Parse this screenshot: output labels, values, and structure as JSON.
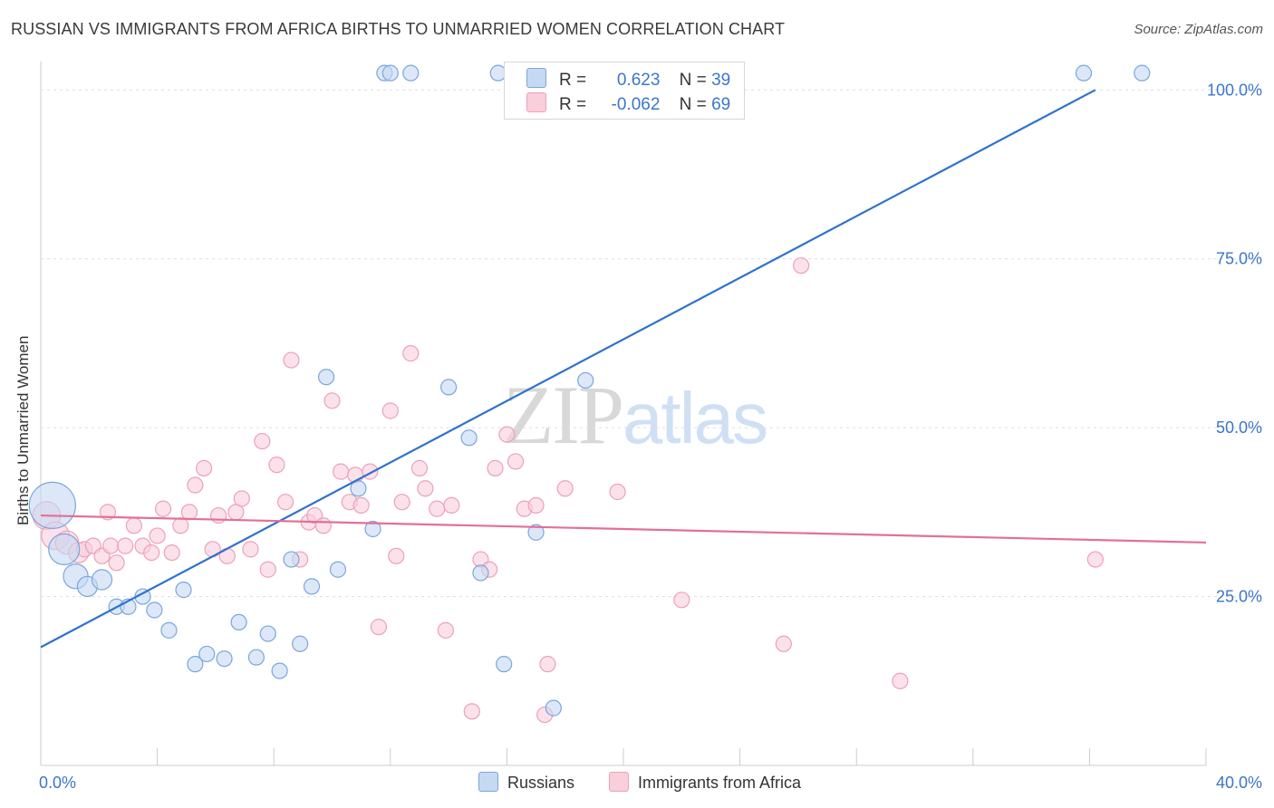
{
  "header": {
    "title": "RUSSIAN VS IMMIGRANTS FROM AFRICA BIRTHS TO UNMARRIED WOMEN CORRELATION CHART",
    "source": "Source: ZipAtlas.com"
  },
  "watermark": {
    "zip": "ZIP",
    "atlas": "atlas"
  },
  "legend": {
    "russians": {
      "r_label": "R =",
      "r_value": "0.623",
      "n_label": "N =",
      "n_value": "39"
    },
    "africa": {
      "r_label": "R =",
      "r_value": "-0.062",
      "n_label": "N =",
      "n_value": "69"
    }
  },
  "bottom_legend": {
    "russians": "Russians",
    "africa": "Immigrants from Africa"
  },
  "colors": {
    "russians_fill": "#c5d9f3",
    "russians_stroke": "#7aa6dc",
    "russians_line": "#2f72cc",
    "africa_fill": "#f9cfdc",
    "africa_stroke": "#eea0b7",
    "africa_line": "#e36f97",
    "tick_label": "#3b76c9",
    "grid": "#dddddd"
  },
  "chart_data": {
    "type": "scatter",
    "title": "RUSSIAN VS IMMIGRANTS FROM AFRICA BIRTHS TO UNMARRIED WOMEN CORRELATION CHART",
    "ylabel": "Births to Unmarried Women",
    "xlim": [
      0,
      40
    ],
    "ylim": [
      0,
      105
    ],
    "x_ticks": [
      0,
      40
    ],
    "x_tick_labels": [
      "0.0%",
      "40.0%"
    ],
    "y_ticks": [
      25,
      50,
      75,
      100
    ],
    "y_tick_labels": [
      "25.0%",
      "50.0%",
      "75.0%",
      "100.0%"
    ],
    "grid": true,
    "legend_position": "top-center",
    "series": [
      {
        "name": "Russians",
        "stats": {
          "R": 0.623,
          "N": 39
        },
        "trend": {
          "x": [
            0,
            36.2
          ],
          "y": [
            17.5,
            100
          ]
        },
        "points": [
          {
            "x": 0.4,
            "y": 38.5,
            "s": 3
          },
          {
            "x": 0.8,
            "y": 32,
            "s": 2
          },
          {
            "x": 1.2,
            "y": 28,
            "s": 1.6
          },
          {
            "x": 1.6,
            "y": 26.5,
            "s": 1.3
          },
          {
            "x": 2.1,
            "y": 27.5,
            "s": 1.3
          },
          {
            "x": 2.6,
            "y": 23.5,
            "s": 1
          },
          {
            "x": 3.0,
            "y": 23.5,
            "s": 1
          },
          {
            "x": 3.5,
            "y": 25,
            "s": 1
          },
          {
            "x": 3.9,
            "y": 23,
            "s": 1
          },
          {
            "x": 4.4,
            "y": 20,
            "s": 1
          },
          {
            "x": 4.9,
            "y": 26,
            "s": 1
          },
          {
            "x": 5.3,
            "y": 15,
            "s": 1
          },
          {
            "x": 5.7,
            "y": 16.5,
            "s": 1
          },
          {
            "x": 6.3,
            "y": 15.8,
            "s": 1
          },
          {
            "x": 6.8,
            "y": 21.2,
            "s": 1
          },
          {
            "x": 7.4,
            "y": 16,
            "s": 1
          },
          {
            "x": 7.8,
            "y": 19.5,
            "s": 1
          },
          {
            "x": 8.2,
            "y": 14,
            "s": 1
          },
          {
            "x": 8.6,
            "y": 30.5,
            "s": 1
          },
          {
            "x": 8.9,
            "y": 18,
            "s": 1
          },
          {
            "x": 9.3,
            "y": 26.5,
            "s": 1
          },
          {
            "x": 9.8,
            "y": 57.5,
            "s": 1
          },
          {
            "x": 10.2,
            "y": 29,
            "s": 1
          },
          {
            "x": 10.9,
            "y": 41,
            "s": 1
          },
          {
            "x": 11.4,
            "y": 35,
            "s": 1
          },
          {
            "x": 11.8,
            "y": 102.5,
            "s": 1
          },
          {
            "x": 12.0,
            "y": 102.5,
            "s": 1
          },
          {
            "x": 12.7,
            "y": 102.5,
            "s": 1
          },
          {
            "x": 14.0,
            "y": 56,
            "s": 1
          },
          {
            "x": 14.7,
            "y": 48.5,
            "s": 1
          },
          {
            "x": 15.1,
            "y": 28.5,
            "s": 1
          },
          {
            "x": 15.7,
            "y": 102.5,
            "s": 1
          },
          {
            "x": 15.9,
            "y": 15,
            "s": 1
          },
          {
            "x": 17.0,
            "y": 34.5,
            "s": 1
          },
          {
            "x": 17.6,
            "y": 8.5,
            "s": 1
          },
          {
            "x": 18.7,
            "y": 57,
            "s": 1
          },
          {
            "x": 20.0,
            "y": 102.5,
            "s": 1
          },
          {
            "x": 35.8,
            "y": 102.5,
            "s": 1
          },
          {
            "x": 37.8,
            "y": 102.5,
            "s": 1
          }
        ]
      },
      {
        "name": "Immigrants from Africa",
        "stats": {
          "R": -0.062,
          "N": 69
        },
        "trend": {
          "x": [
            0,
            40
          ],
          "y": [
            37,
            33
          ]
        },
        "points": [
          {
            "x": 0.2,
            "y": 37,
            "s": 1.8
          },
          {
            "x": 0.5,
            "y": 34,
            "s": 1.8
          },
          {
            "x": 0.9,
            "y": 33,
            "s": 1.5
          },
          {
            "x": 1.3,
            "y": 31.5,
            "s": 1.3
          },
          {
            "x": 1.5,
            "y": 32,
            "s": 1
          },
          {
            "x": 1.8,
            "y": 32.5,
            "s": 1
          },
          {
            "x": 2.1,
            "y": 31,
            "s": 1
          },
          {
            "x": 2.3,
            "y": 37.5,
            "s": 1
          },
          {
            "x": 2.4,
            "y": 32.5,
            "s": 1
          },
          {
            "x": 2.6,
            "y": 30,
            "s": 1
          },
          {
            "x": 2.9,
            "y": 32.5,
            "s": 1
          },
          {
            "x": 3.2,
            "y": 35.5,
            "s": 1
          },
          {
            "x": 3.5,
            "y": 32.5,
            "s": 1
          },
          {
            "x": 3.8,
            "y": 31.5,
            "s": 1
          },
          {
            "x": 4.0,
            "y": 34,
            "s": 1
          },
          {
            "x": 4.2,
            "y": 38,
            "s": 1
          },
          {
            "x": 4.5,
            "y": 31.5,
            "s": 1
          },
          {
            "x": 4.8,
            "y": 35.5,
            "s": 1
          },
          {
            "x": 5.1,
            "y": 37.5,
            "s": 1
          },
          {
            "x": 5.3,
            "y": 41.5,
            "s": 1
          },
          {
            "x": 5.6,
            "y": 44,
            "s": 1
          },
          {
            "x": 5.9,
            "y": 32,
            "s": 1
          },
          {
            "x": 6.1,
            "y": 37,
            "s": 1
          },
          {
            "x": 6.4,
            "y": 31,
            "s": 1
          },
          {
            "x": 6.7,
            "y": 37.5,
            "s": 1
          },
          {
            "x": 6.9,
            "y": 39.5,
            "s": 1
          },
          {
            "x": 7.2,
            "y": 32,
            "s": 1
          },
          {
            "x": 7.6,
            "y": 48,
            "s": 1
          },
          {
            "x": 7.8,
            "y": 29,
            "s": 1
          },
          {
            "x": 8.1,
            "y": 44.5,
            "s": 1
          },
          {
            "x": 8.4,
            "y": 39,
            "s": 1
          },
          {
            "x": 8.6,
            "y": 60,
            "s": 1
          },
          {
            "x": 8.9,
            "y": 30.5,
            "s": 1
          },
          {
            "x": 9.2,
            "y": 36,
            "s": 1
          },
          {
            "x": 9.4,
            "y": 37,
            "s": 1
          },
          {
            "x": 9.7,
            "y": 35.5,
            "s": 1
          },
          {
            "x": 10.0,
            "y": 54,
            "s": 1
          },
          {
            "x": 10.3,
            "y": 43.5,
            "s": 1
          },
          {
            "x": 10.6,
            "y": 39,
            "s": 1
          },
          {
            "x": 10.8,
            "y": 43,
            "s": 1
          },
          {
            "x": 11.0,
            "y": 38.5,
            "s": 1
          },
          {
            "x": 11.3,
            "y": 43.5,
            "s": 1
          },
          {
            "x": 11.6,
            "y": 20.5,
            "s": 1
          },
          {
            "x": 12.0,
            "y": 52.5,
            "s": 1
          },
          {
            "x": 12.2,
            "y": 31,
            "s": 1
          },
          {
            "x": 12.4,
            "y": 39,
            "s": 1
          },
          {
            "x": 12.7,
            "y": 61,
            "s": 1
          },
          {
            "x": 13.0,
            "y": 44,
            "s": 1
          },
          {
            "x": 13.2,
            "y": 41,
            "s": 1
          },
          {
            "x": 13.6,
            "y": 38,
            "s": 1
          },
          {
            "x": 13.9,
            "y": 20,
            "s": 1
          },
          {
            "x": 14.1,
            "y": 38.5,
            "s": 1
          },
          {
            "x": 14.8,
            "y": 8,
            "s": 1
          },
          {
            "x": 15.1,
            "y": 30.5,
            "s": 1
          },
          {
            "x": 15.4,
            "y": 29,
            "s": 1
          },
          {
            "x": 15.6,
            "y": 44,
            "s": 1
          },
          {
            "x": 16.0,
            "y": 49,
            "s": 1
          },
          {
            "x": 16.3,
            "y": 45,
            "s": 1
          },
          {
            "x": 16.6,
            "y": 38,
            "s": 1
          },
          {
            "x": 17.0,
            "y": 38.5,
            "s": 1
          },
          {
            "x": 17.3,
            "y": 7.5,
            "s": 1
          },
          {
            "x": 17.4,
            "y": 15,
            "s": 1
          },
          {
            "x": 18.0,
            "y": 41,
            "s": 1
          },
          {
            "x": 19.8,
            "y": 40.5,
            "s": 1
          },
          {
            "x": 22.0,
            "y": 24.5,
            "s": 1
          },
          {
            "x": 25.5,
            "y": 18,
            "s": 1
          },
          {
            "x": 26.1,
            "y": 74,
            "s": 1
          },
          {
            "x": 29.5,
            "y": 12.5,
            "s": 1
          },
          {
            "x": 36.2,
            "y": 30.5,
            "s": 1
          }
        ]
      }
    ]
  }
}
